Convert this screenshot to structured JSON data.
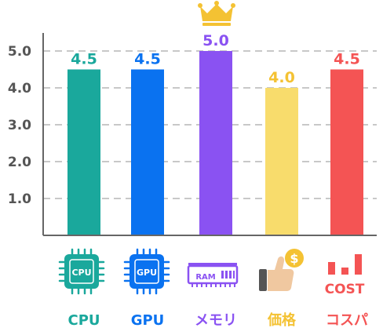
{
  "chart_data": {
    "type": "bar",
    "categories": [
      "CPU",
      "GPU",
      "メモリ",
      "価格",
      "コスパ"
    ],
    "values": [
      4.5,
      4.5,
      5.0,
      4.0,
      4.5
    ],
    "data_labels": [
      "4.5",
      "4.5",
      "5.0",
      "4.0",
      "4.5"
    ],
    "colors": [
      "#1aa89c",
      "#0a72f0",
      "#8a52f2",
      "#f8dc6c",
      "#f45454"
    ],
    "label_colors": [
      "#1aa89c",
      "#0a72f0",
      "#8a52f2",
      "#f4c233",
      "#f45454"
    ],
    "yticks": [
      "1.0",
      "2.0",
      "3.0",
      "4.0",
      "5.0"
    ],
    "ytick_values": [
      1,
      2,
      3,
      4,
      5
    ],
    "ylim": [
      0,
      5.5
    ],
    "grid": "dashed-horizontal",
    "highlight": {
      "category": "メモリ",
      "icon": "crown-icon"
    },
    "icons": [
      "cpu-chip-icon",
      "gpu-chip-icon",
      "ram-module-icon",
      "thumbs-up-coin-icon",
      "cost-bars-icon"
    ],
    "icon_text": {
      "cpu": "CPU",
      "gpu": "GPU",
      "ram": "RAM",
      "coin": "$",
      "cost": "COST"
    }
  }
}
